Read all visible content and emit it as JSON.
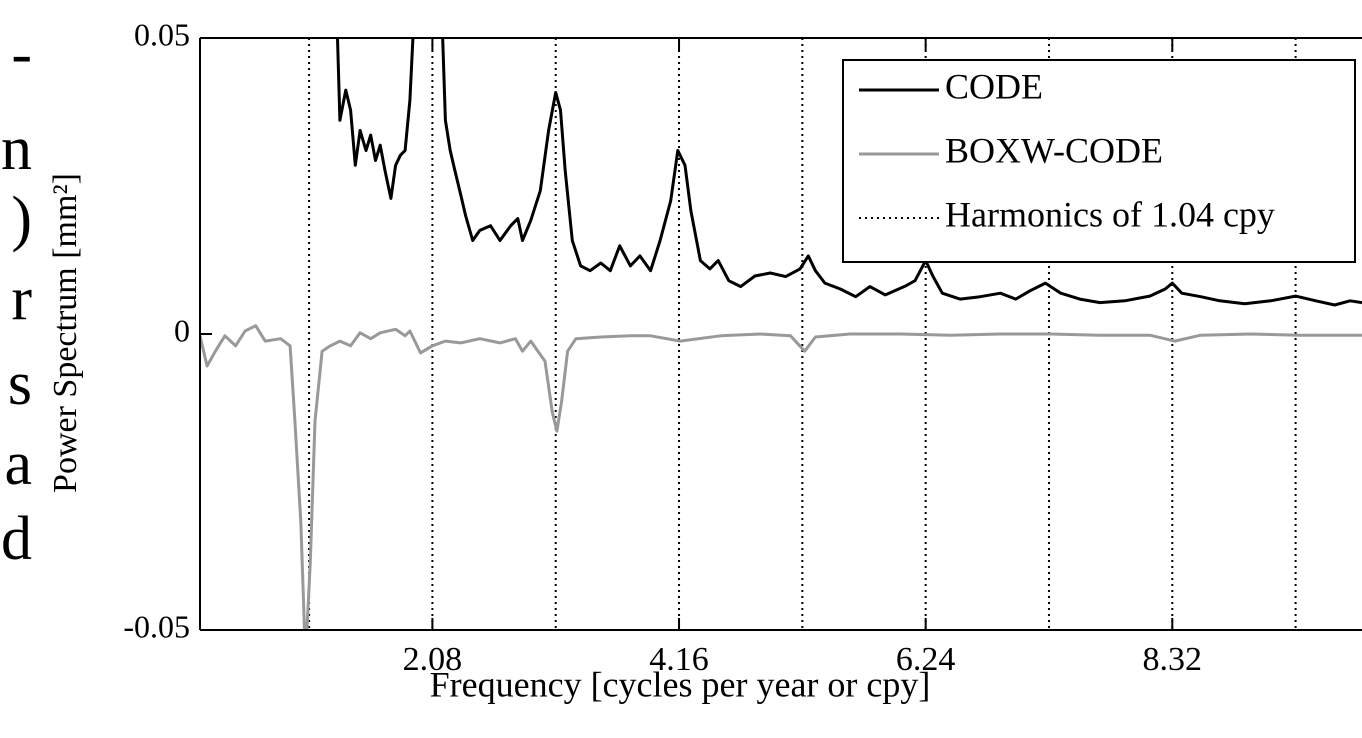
{
  "margin_text": [
    "-",
    "n",
    ")",
    "r",
    "s",
    "a",
    "d"
  ],
  "chart_data": {
    "type": "line",
    "xlabel": "Frequency [cycles per year or cpy]",
    "ylabel": "Power Spectrum [mm²]",
    "xlim": [
      0.12,
      9.92
    ],
    "ylim": [
      -0.05,
      0.05
    ],
    "xticks": [
      2.08,
      4.16,
      6.24,
      8.32
    ],
    "yticks": [
      -0.05,
      0,
      0.05
    ],
    "legend": "upper right",
    "harmonics": {
      "name": "Harmonics of 1.04 cpy",
      "color": "#000000",
      "x": [
        1.04,
        2.08,
        3.12,
        4.16,
        5.2,
        6.24,
        7.28,
        8.32,
        9.36
      ]
    },
    "series": [
      {
        "name": "CODE",
        "color": "#000000",
        "x": [
          1.22,
          1.28,
          1.3,
          1.35,
          1.39,
          1.43,
          1.47,
          1.52,
          1.56,
          1.6,
          1.64,
          1.68,
          1.73,
          1.77,
          1.81,
          1.85,
          1.89,
          1.94,
          2.02,
          2.15,
          2.19,
          2.23,
          2.27,
          2.32,
          2.36,
          2.42,
          2.48,
          2.57,
          2.65,
          2.74,
          2.8,
          2.84,
          2.91,
          2.99,
          3.06,
          3.12,
          3.16,
          3.2,
          3.26,
          3.33,
          3.41,
          3.5,
          3.58,
          3.66,
          3.75,
          3.83,
          3.92,
          4.0,
          4.09,
          4.15,
          4.21,
          4.26,
          4.34,
          4.42,
          4.49,
          4.58,
          4.68,
          4.8,
          4.93,
          5.06,
          5.18,
          5.25,
          5.31,
          5.39,
          5.52,
          5.65,
          5.77,
          5.9,
          6.07,
          6.15,
          6.24,
          6.3,
          6.38,
          6.53,
          6.7,
          6.87,
          7.0,
          7.12,
          7.25,
          7.38,
          7.54,
          7.71,
          7.92,
          8.13,
          8.26,
          8.32,
          8.4,
          8.56,
          8.72,
          8.93,
          9.15,
          9.36,
          9.53,
          9.69,
          9.82,
          9.92
        ],
        "values": [
          0.07,
          0.05,
          0.0361,
          0.0412,
          0.0378,
          0.0285,
          0.0344,
          0.031,
          0.0336,
          0.0293,
          0.0319,
          0.0276,
          0.0229,
          0.0285,
          0.0302,
          0.031,
          0.0395,
          0.06,
          0.07,
          0.06,
          0.0361,
          0.031,
          0.0276,
          0.0234,
          0.02,
          0.0158,
          0.0175,
          0.0183,
          0.0158,
          0.0183,
          0.0195,
          0.0158,
          0.0192,
          0.0242,
          0.0344,
          0.0408,
          0.0378,
          0.0276,
          0.0158,
          0.0115,
          0.0107,
          0.012,
          0.0107,
          0.0149,
          0.0115,
          0.0132,
          0.0107,
          0.0158,
          0.0225,
          0.031,
          0.0285,
          0.0208,
          0.0124,
          0.011,
          0.0124,
          0.009,
          0.008,
          0.0098,
          0.0103,
          0.0097,
          0.011,
          0.0132,
          0.0107,
          0.0086,
          0.0076,
          0.0063,
          0.008,
          0.0066,
          0.0081,
          0.009,
          0.0124,
          0.0098,
          0.0069,
          0.0059,
          0.0063,
          0.0069,
          0.0059,
          0.0073,
          0.0086,
          0.0069,
          0.0059,
          0.0053,
          0.0056,
          0.0064,
          0.0076,
          0.0086,
          0.0069,
          0.0063,
          0.0056,
          0.0051,
          0.0056,
          0.0064,
          0.0056,
          0.0049,
          0.0056,
          0.0053
        ]
      },
      {
        "name": "BOXW-CODE",
        "color": "#999999",
        "x": [
          0.12,
          0.18,
          0.25,
          0.33,
          0.42,
          0.5,
          0.59,
          0.67,
          0.8,
          0.88,
          0.92,
          0.97,
          1.01,
          1.05,
          1.09,
          1.15,
          1.22,
          1.3,
          1.39,
          1.47,
          1.56,
          1.64,
          1.77,
          1.85,
          1.89,
          1.98,
          2.08,
          2.19,
          2.32,
          2.48,
          2.65,
          2.78,
          2.84,
          2.91,
          3.03,
          3.09,
          3.13,
          3.17,
          3.22,
          3.29,
          3.5,
          3.75,
          3.92,
          4.17,
          4.51,
          4.85,
          5.1,
          5.22,
          5.31,
          5.6,
          6.03,
          6.45,
          6.87,
          7.29,
          7.71,
          8.13,
          8.34,
          8.56,
          8.98,
          9.4,
          9.92
        ],
        "values": [
          -0.0003,
          -0.0054,
          -0.0029,
          -0.0003,
          -0.002,
          0.0005,
          0.0014,
          -0.0012,
          -0.0008,
          -0.002,
          -0.0147,
          -0.0317,
          -0.055,
          -0.0385,
          -0.0147,
          -0.0029,
          -0.002,
          -0.0012,
          -0.002,
          0.0002,
          -0.0008,
          0.0002,
          0.0008,
          -0.0003,
          0.0005,
          -0.0032,
          -0.002,
          -0.0012,
          -0.0015,
          -0.0008,
          -0.0015,
          -0.0008,
          -0.0029,
          -0.0012,
          -0.0046,
          -0.0131,
          -0.0164,
          -0.0114,
          -0.0029,
          -0.0008,
          -0.0005,
          -0.0003,
          -0.0003,
          -0.0012,
          -0.0003,
          0,
          -0.0003,
          -0.0029,
          -0.0005,
          0,
          0,
          -0.0002,
          0,
          0,
          -0.0002,
          -0.0002,
          -0.0012,
          -0.0002,
          0,
          -0.0002,
          -0.0002
        ]
      }
    ]
  }
}
